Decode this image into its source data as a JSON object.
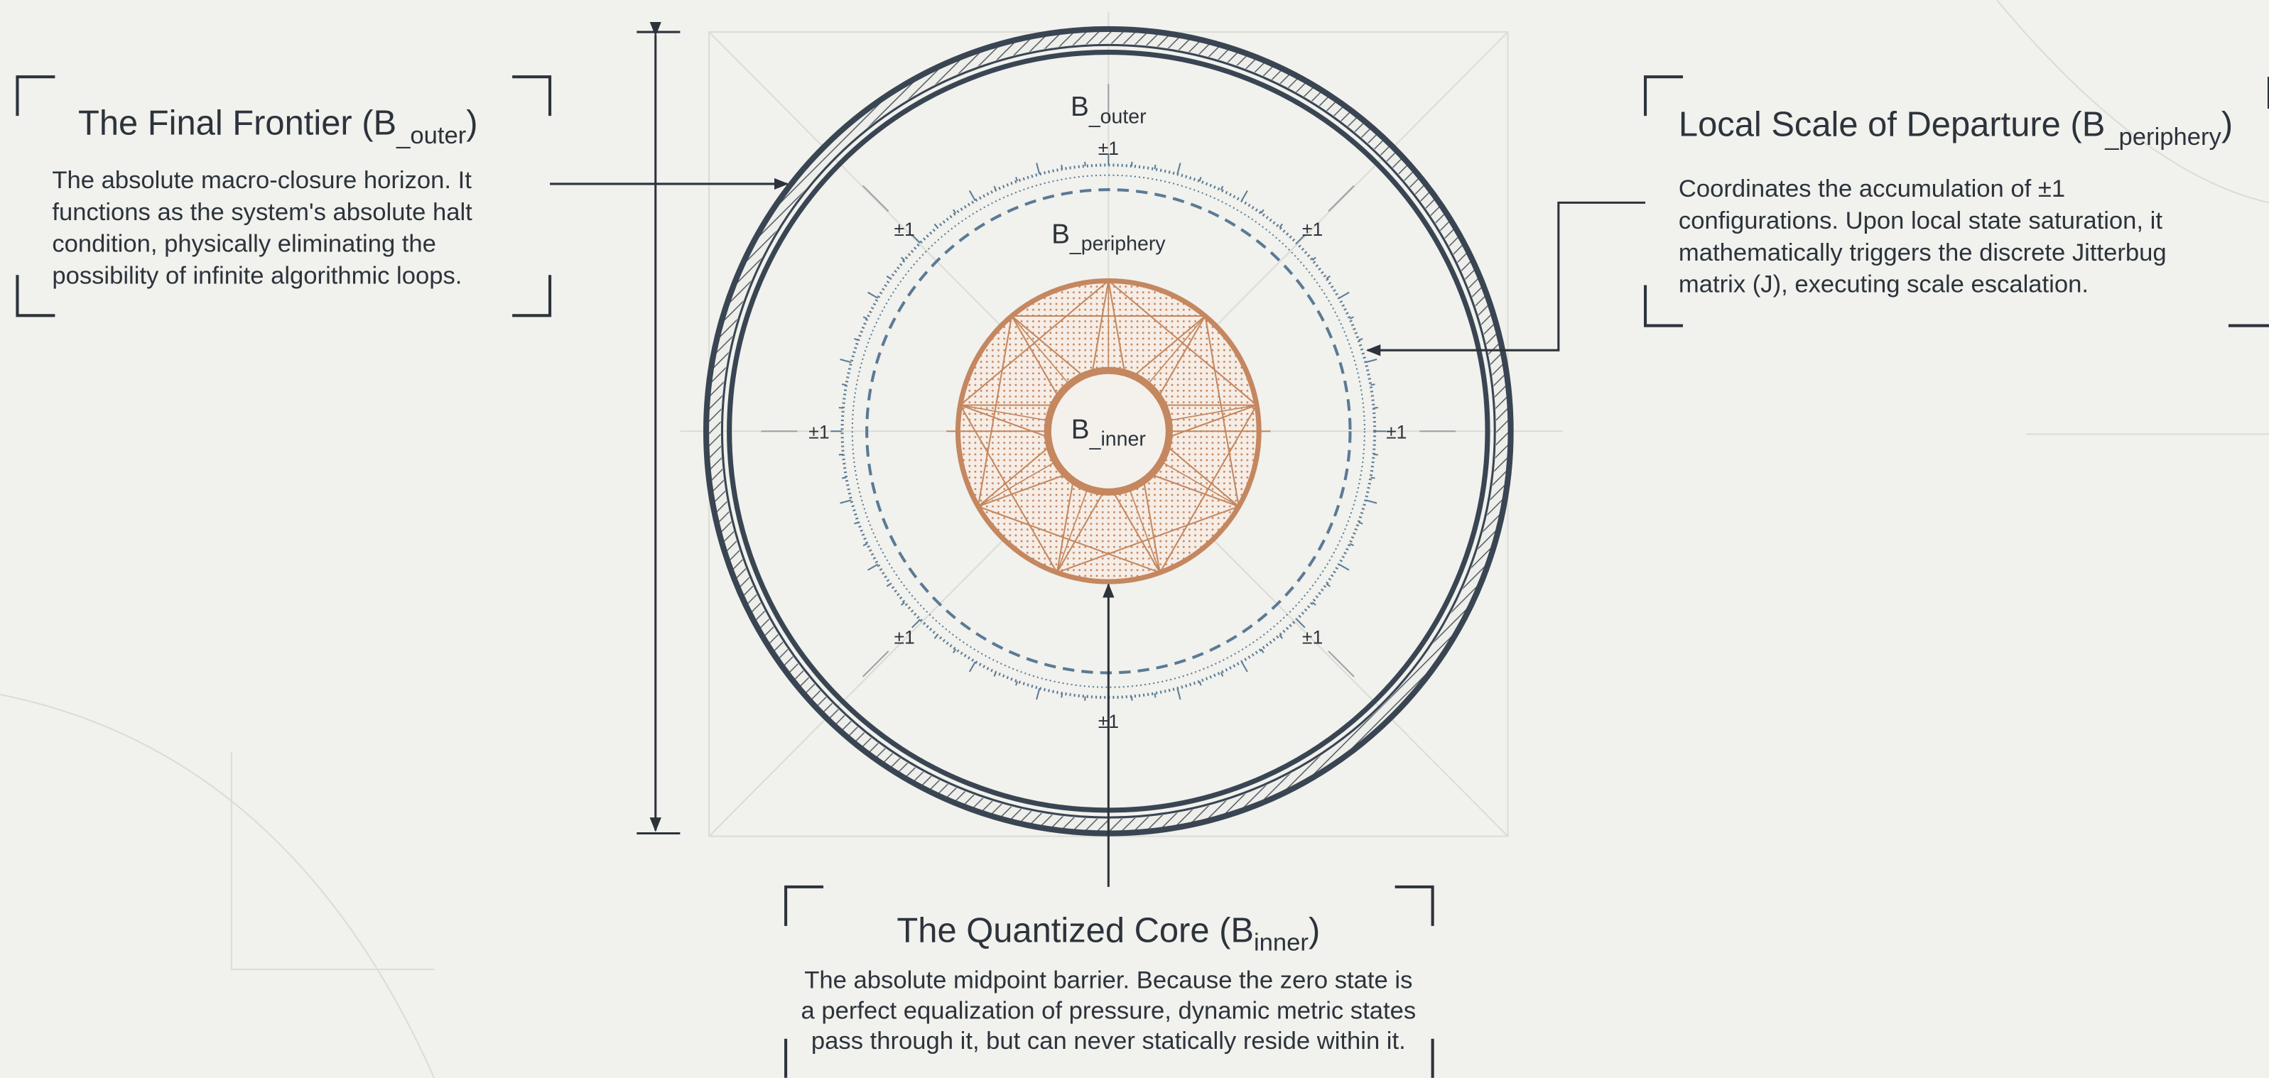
{
  "callouts": [
    {
      "title": {
        "main": "The Final Frontier (B",
        "sub": "_outer",
        "end": ")"
      },
      "lines": [
        "The absolute macro-closure horizon. It",
        "functions as the system's absolute halt",
        "condition, physically eliminating the",
        "possibility of infinite algorithmic loops."
      ]
    },
    {
      "title": {
        "main": "Local Scale of Departure (B",
        "sub": "_periphery",
        "end": ")"
      },
      "lines": [
        "Coordinates the accumulation of ±1",
        "configurations. Upon local state saturation, it",
        "mathematically triggers the discrete Jitterbug",
        "matrix (J), executing scale escalation."
      ]
    },
    {
      "title": {
        "main": "The Quantized Core (B",
        "sub": "inner",
        "end": ")"
      },
      "lines": [
        "The absolute midpoint barrier. Because the zero state is",
        "a perfect equalization of pressure, dynamic metric states",
        "pass through it, but can never statically reside within it."
      ]
    }
  ],
  "diagram": {
    "labels": [
      {
        "main": "B",
        "sub": "_outer"
      },
      {
        "main": "B",
        "sub": "_periphery"
      },
      {
        "main": "B",
        "sub": "_inner"
      }
    ],
    "unit_marks": [
      "±1",
      "±1",
      "±1",
      "±1",
      "±1",
      "±1",
      "±1",
      "±1"
    ]
  }
}
